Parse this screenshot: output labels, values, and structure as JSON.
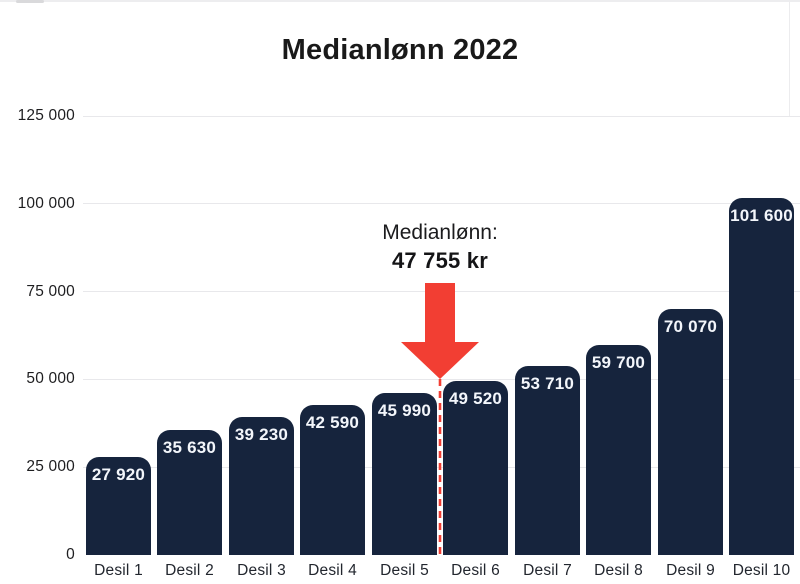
{
  "title": "Medianlønn 2022",
  "annotation": {
    "label": "Medianlønn:",
    "value": "47 755 kr",
    "arrow_color": "#f23e33"
  },
  "chart_data": {
    "type": "bar",
    "title": "Medianlønn 2022",
    "categories": [
      "Desil 1",
      "Desil 2",
      "Desil 3",
      "Desil 4",
      "Desil 5",
      "Desil 6",
      "Desil 7",
      "Desil 8",
      "Desil 9",
      "Desil 10"
    ],
    "values": [
      27920,
      35630,
      39230,
      42590,
      45990,
      49520,
      53710,
      59700,
      70070,
      101600
    ],
    "value_labels": [
      "27 920",
      "35 630",
      "39 230",
      "42 590",
      "45 990",
      "49 520",
      "53 710",
      "59 700",
      "70 070",
      "101 600"
    ],
    "xlabel": "",
    "ylabel": "",
    "ylim": [
      0,
      125000
    ],
    "yticks": [
      0,
      25000,
      50000,
      75000,
      100000,
      125000
    ],
    "ytick_labels": [
      "0",
      "25 000",
      "50 000",
      "75 000",
      "100 000",
      "125 000"
    ],
    "grid": true,
    "legend": false,
    "bar_color": "#16243d",
    "bar_label_color": "#f3f6fb",
    "grid_color": "#e8e8eb",
    "annotation": {
      "text": "Medianlønn: 47 755 kr",
      "marker": "red-down-arrow-with-dashed-line",
      "between_categories": [
        "Desil 5",
        "Desil 6"
      ]
    }
  }
}
